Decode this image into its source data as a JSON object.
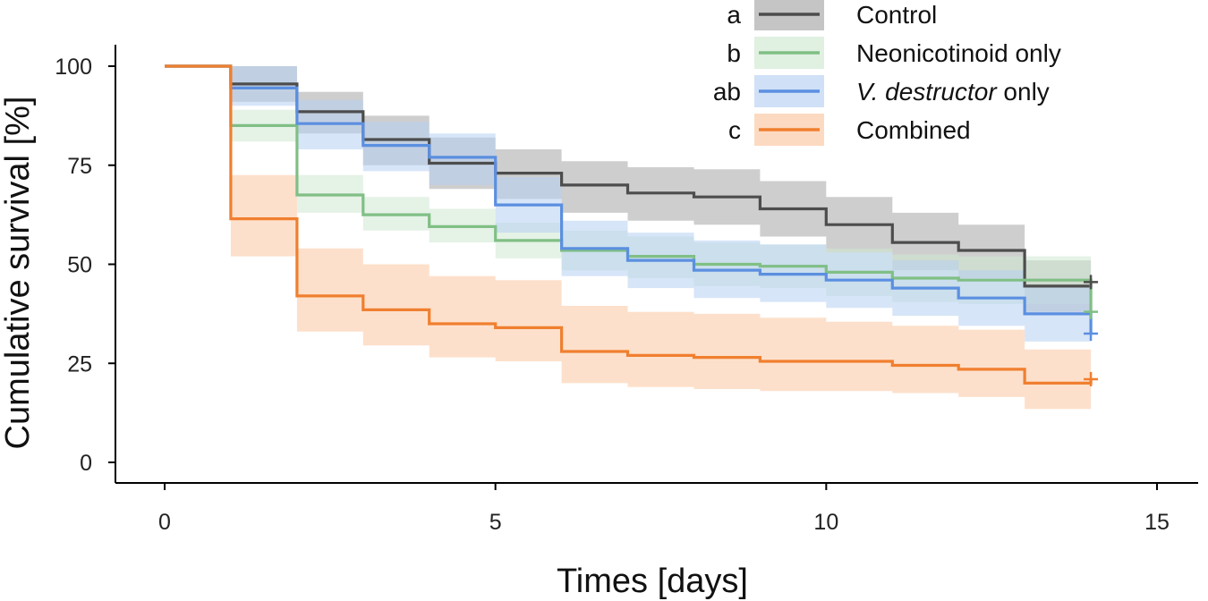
{
  "chart_data": {
    "type": "line",
    "subtype": "kaplan-meier step curves with confidence bands",
    "xlabel": "Times [days]",
    "ylabel": "Cumulative survival [%]",
    "xlim": [
      0,
      15
    ],
    "ylim": [
      0,
      100
    ],
    "xticks": [
      0,
      5,
      10,
      15
    ],
    "yticks": [
      0,
      25,
      50,
      75,
      100
    ],
    "legend_position": "top-right",
    "series": [
      {
        "name": "Control",
        "group_letter": "a",
        "color": "#4d4d4d",
        "band_color": "#a6a6a6",
        "times": [
          0,
          1,
          2,
          3,
          4,
          5,
          6,
          7,
          8,
          9,
          10,
          11,
          12,
          13,
          14
        ],
        "values": [
          100,
          95.5,
          88.5,
          81.5,
          75.5,
          73,
          70,
          68,
          67,
          64,
          60,
          55.5,
          53.5,
          44.5,
          45.5
        ],
        "lower": [
          100,
          91,
          83,
          75,
          69,
          66.5,
          63,
          61,
          60,
          57,
          53,
          48.5,
          46.5,
          38,
          38
        ],
        "upper": [
          100,
          100,
          93.5,
          87.5,
          82,
          79,
          76,
          74.5,
          74,
          71,
          67,
          63,
          60,
          51,
          51
        ],
        "censored_at": 14,
        "censored_value": 45.5
      },
      {
        "name": "Neonicotinoid only",
        "group_letter": "b",
        "color": "#80bf85",
        "band_color": "#cfe8d1",
        "times": [
          0,
          1,
          2,
          3,
          4,
          5,
          6,
          7,
          8,
          9,
          10,
          11,
          12,
          13,
          14
        ],
        "values": [
          100,
          85,
          67.5,
          62.5,
          59.5,
          56,
          53.5,
          52,
          50,
          49.5,
          48,
          46.5,
          46,
          46,
          38
        ],
        "lower": [
          100,
          81,
          63,
          58.5,
          55.5,
          51.5,
          48.5,
          46.5,
          44.5,
          44,
          42,
          40.5,
          40,
          40,
          32
        ],
        "upper": [
          100,
          89,
          72.5,
          67,
          64,
          60.5,
          58.5,
          57,
          55.5,
          55,
          54,
          52.5,
          52,
          52,
          44
        ],
        "censored_at": 14,
        "censored_value": 38
      },
      {
        "name": "V. destructor only",
        "name_italic": "V. destructor",
        "name_rest": " only",
        "group_letter": "ab",
        "color": "#5b8fe0",
        "band_color": "#b7cff2",
        "times": [
          0,
          1,
          2,
          3,
          4,
          5,
          6,
          7,
          8,
          9,
          10,
          11,
          12,
          13,
          14
        ],
        "values": [
          100,
          94.5,
          85.5,
          80,
          77,
          65,
          54,
          51,
          48.5,
          47.5,
          46,
          44,
          41.5,
          37.5,
          32.5
        ],
        "lower": [
          100,
          90,
          79,
          73.5,
          70,
          58,
          47,
          44,
          41.5,
          40.5,
          39,
          37,
          34.5,
          30.5,
          29
        ],
        "upper": [
          100,
          100,
          91.5,
          86,
          83,
          72,
          61,
          58,
          56,
          55,
          53,
          51,
          48.5,
          44.5,
          36
        ],
        "censored_at": 14,
        "censored_value": 32.5
      },
      {
        "name": "Combined",
        "group_letter": "c",
        "color": "#f07f2f",
        "band_color": "#fbc6a0",
        "times": [
          0,
          1,
          2,
          3,
          4,
          5,
          6,
          7,
          8,
          9,
          10,
          11,
          12,
          13,
          14
        ],
        "values": [
          100,
          61.5,
          42,
          38.5,
          35,
          34,
          28,
          27,
          26.5,
          25.5,
          25.5,
          24.5,
          23.5,
          20,
          21
        ],
        "lower": [
          100,
          52,
          33,
          29.5,
          26.5,
          25.5,
          20,
          19,
          18.5,
          18,
          18,
          17.5,
          16.5,
          13.5,
          13.5
        ],
        "upper": [
          100,
          72.5,
          54,
          50,
          47,
          46,
          39.5,
          38,
          37.5,
          36.5,
          35.5,
          34.5,
          33.5,
          28.5,
          28.5
        ],
        "censored_at": 14,
        "censored_value": 21
      }
    ]
  }
}
